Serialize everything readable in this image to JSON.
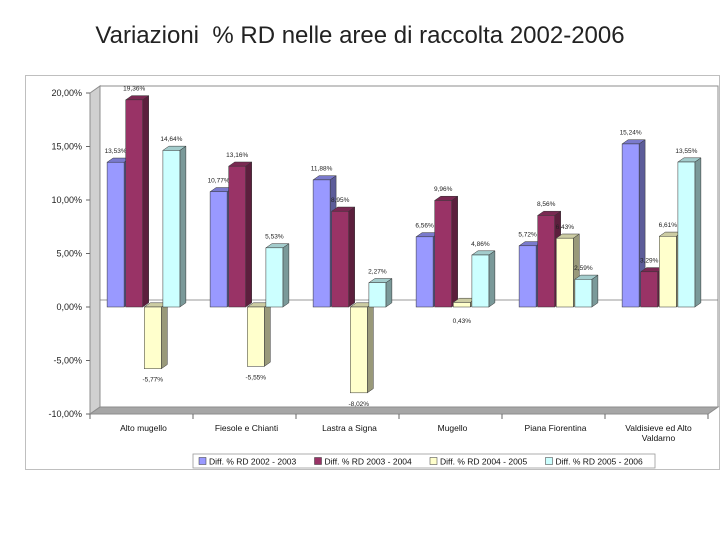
{
  "title": "Variazioni  % RD nelle aree di raccolta 2002-2006",
  "chart_data": {
    "type": "bar",
    "style": "3d-clustered-column",
    "categories": [
      "Alto mugello",
      "Fiesole e Chianti",
      "Lastra a Signa",
      "Mugello",
      "Piana Fiorentina",
      "Valdisieve ed Alto Valdarno"
    ],
    "category_lines": [
      [
        "Alto mugello"
      ],
      [
        "Fiesole e Chianti"
      ],
      [
        "Lastra a Signa"
      ],
      [
        "Mugello"
      ],
      [
        "Piana Fiorentina"
      ],
      [
        "Valdisieve ed Alto",
        "Valdarno"
      ]
    ],
    "series": [
      {
        "name": "Diff. % RD 2002 - 2003",
        "color": "#9999ff",
        "values": [
          13.53,
          10.77,
          11.88,
          6.56,
          5.72,
          15.24
        ],
        "labels": [
          "13,53%",
          "10,77%",
          "11,88%",
          "6,56%",
          "5,72%",
          "15,24%"
        ]
      },
      {
        "name": "Diff. % RD 2003 - 2004",
        "color": "#993366",
        "values": [
          19.36,
          13.16,
          8.95,
          9.96,
          8.56,
          3.29
        ],
        "labels": [
          "19,36%",
          "13,16%",
          "8,95%",
          "9,96%",
          "8,56%",
          "3,29%"
        ]
      },
      {
        "name": "Diff. % RD 2004 - 2005",
        "color": "#ffffcc",
        "values": [
          -5.77,
          -5.55,
          -8.02,
          0.43,
          6.43,
          6.61
        ],
        "labels": [
          "-5,77%",
          "-5,55%",
          "-8,02%",
          "0,43%",
          "6,43%",
          "6,61%"
        ]
      },
      {
        "name": "Diff. % RD 2005 - 2006",
        "color": "#ccffff",
        "values": [
          14.64,
          5.53,
          2.27,
          4.86,
          2.59,
          13.55
        ],
        "labels": [
          "14,64%",
          "5,53%",
          "2,27%",
          "4,86%",
          "2,59%",
          "13,55%"
        ]
      }
    ],
    "ylim": [
      -10,
      20
    ],
    "yticks": [
      20,
      15,
      10,
      5,
      0,
      -5,
      -10
    ],
    "ytick_labels": [
      "20,00%",
      "15,00%",
      "10,00%",
      "5,00%",
      "0,00%",
      "-5,00%",
      "-10,00%"
    ],
    "grid": false,
    "legend_position": "bottom",
    "xlabel": "",
    "ylabel": ""
  }
}
